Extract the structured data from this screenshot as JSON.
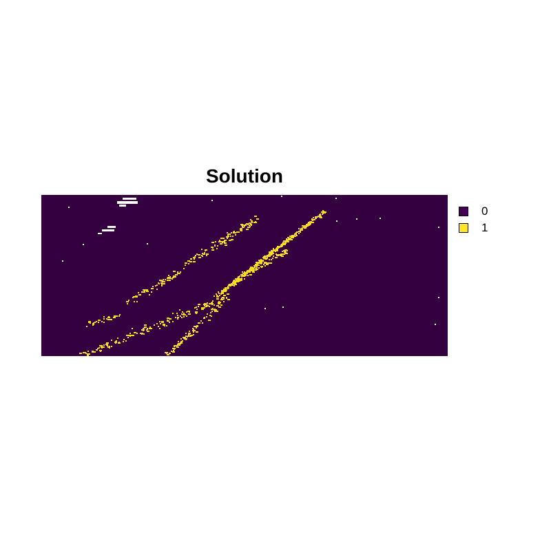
{
  "chart_data": {
    "type": "heatmap",
    "title": "Solution",
    "xlabel": "",
    "ylabel": "",
    "value_type": "binary raster",
    "axes_visible": false,
    "legend_position": "right",
    "legend": [
      {
        "value": "0",
        "color": "#440154"
      },
      {
        "value": "1",
        "color": "#FDE725"
      }
    ],
    "nodata_color": "#FFFFFF",
    "raster_colors": {
      "background_value": "0",
      "background_color": "#35003F",
      "selected_color": "#F5DC1C"
    }
  }
}
